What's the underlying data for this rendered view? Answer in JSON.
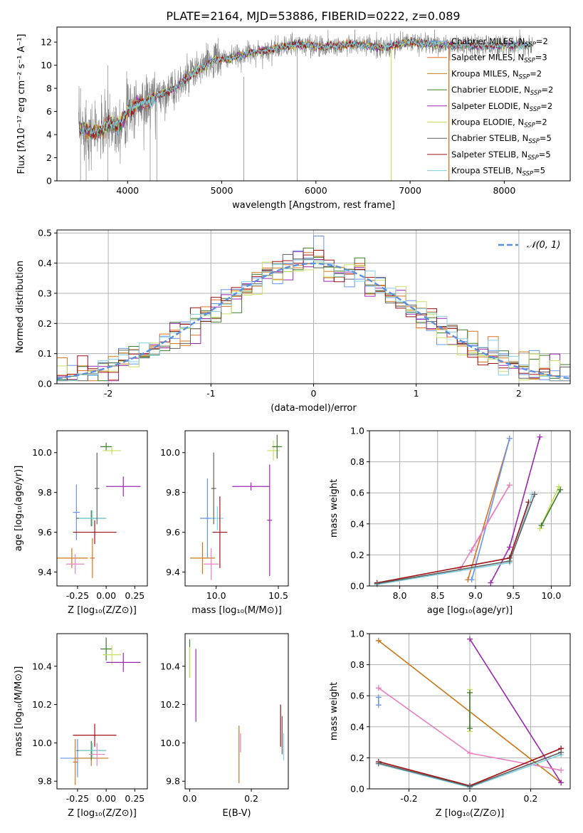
{
  "figure_title": "PLATE=2164, MJD=53886, FIBERID=0222, z=0.089",
  "colors": {
    "series": [
      "#6495ed",
      "#e07020",
      "#c87818",
      "#3c7a2c",
      "#9b27b0",
      "#c8e060",
      "#606060",
      "#a01010",
      "#80d0e0"
    ],
    "model_grey": "#808080",
    "normal_curve": "#5a8fe0",
    "pink": "#e880c0",
    "grid": "#b0b0b0"
  },
  "legend_ssp": [
    {
      "label": "Chabrier MILES, N",
      "sub": "SSP",
      "suffix": "=2"
    },
    {
      "label": "Salpeter MILES, N",
      "sub": "SSP",
      "suffix": "=3"
    },
    {
      "label": "Kroupa MILES, N",
      "sub": "SSP",
      "suffix": "=2"
    },
    {
      "label": "Chabrier ELODIE, N",
      "sub": "SSP",
      "suffix": "=2"
    },
    {
      "label": "Salpeter ELODIE, N",
      "sub": "SSP",
      "suffix": "=2"
    },
    {
      "label": "Kroupa ELODIE, N",
      "sub": "SSP",
      "suffix": "=2"
    },
    {
      "label": "Chabrier STELIB, N",
      "sub": "SSP",
      "suffix": "=5"
    },
    {
      "label": "Salpeter STELIB, N",
      "sub": "SSP",
      "suffix": "=5"
    },
    {
      "label": "Kroupa STELIB, N",
      "sub": "SSP",
      "suffix": "=5"
    }
  ],
  "chart_data": [
    {
      "id": "spectrum",
      "type": "line",
      "xlabel": "wavelength [Angstrom, rest frame]",
      "ylabel": "Flux [fλ10⁻¹⁷ erg cm⁻² s⁻¹ A⁻¹]",
      "xlim": [
        3250,
        8700
      ],
      "ylim": [
        0,
        13.3
      ],
      "xticks": [
        4000,
        5000,
        6000,
        7000,
        8000
      ],
      "yticks": [
        0,
        2,
        4,
        6,
        8,
        10,
        12
      ],
      "legend": "right",
      "data_anchor_x": [
        3500,
        3550,
        3600,
        3700,
        3800,
        3900,
        4000,
        4100,
        4200,
        4300,
        4500,
        4700,
        4900,
        5100,
        5300,
        5500,
        5800,
        6100,
        6400,
        6700,
        7000,
        7400
      ],
      "data_anchor_y": [
        4.5,
        4.6,
        4.2,
        4.2,
        5.0,
        4.8,
        6.0,
        6.6,
        6.7,
        7.3,
        8.0,
        9.3,
        10.4,
        10.6,
        11.1,
        11.3,
        11.8,
        11.6,
        11.8,
        11.5,
        12.0,
        11.7
      ]
    },
    {
      "id": "residuals",
      "type": "bar",
      "xlabel": "(data-model)/error",
      "ylabel": "Normed distribution",
      "xlim": [
        -2.5,
        2.5
      ],
      "ylim": [
        0,
        0.51
      ],
      "xticks": [
        -2,
        -1,
        0,
        1,
        2
      ],
      "yticks": [
        0.0,
        0.1,
        0.2,
        0.3,
        0.4,
        0.5
      ],
      "legend_label": "𝒩(0, 1)",
      "bin_width": 0.1,
      "extra_peak": {
        "x": 0.05,
        "y": 0.49
      }
    },
    {
      "id": "age_vs_Z",
      "type": "scatter",
      "xlabel": "Z [log₁₀(Z/Z⊙)]",
      "ylabel": "age  [log₁₀(age/yr)]",
      "xlim": [
        -0.43,
        0.36
      ],
      "ylim": [
        9.33,
        10.11
      ],
      "xticks": [
        -0.25,
        0.0,
        0.25
      ],
      "yticks": [
        9.4,
        9.6,
        9.8,
        10.0
      ],
      "points": [
        {
          "x": -0.3,
          "y": 9.47,
          "xe": 0.14,
          "ye": 0.05,
          "c": "#c87818"
        },
        {
          "x": -0.27,
          "y": 9.44,
          "xe": 0.08,
          "ye": 0.05,
          "c": "#e880c0"
        },
        {
          "x": -0.26,
          "y": 9.7,
          "xe": 0.03,
          "ye": 0.14,
          "c": "#6495ed"
        },
        {
          "x": -0.13,
          "y": 9.67,
          "xe": 0.13,
          "ye": 0.04,
          "c": "#3c7a2c"
        },
        {
          "x": -0.12,
          "y": 9.67,
          "xe": 0.12,
          "ye": 0.04,
          "c": "#80d0e0"
        },
        {
          "x": -0.1,
          "y": 9.6,
          "xe": 0.19,
          "ye": 0.06,
          "c": "#a01010"
        },
        {
          "x": -0.08,
          "y": 9.82,
          "xe": 0.02,
          "ye": 0.18,
          "c": "#606060"
        },
        {
          "x": -0.12,
          "y": 9.47,
          "xe": 0.02,
          "ye": 0.1,
          "c": "#e07020"
        },
        {
          "x": 0.0,
          "y": 10.03,
          "xe": 0.05,
          "ye": 0.02,
          "c": "#3c7a2c"
        },
        {
          "x": 0.05,
          "y": 10.01,
          "xe": 0.08,
          "ye": 0.02,
          "c": "#c8e060"
        },
        {
          "x": 0.15,
          "y": 9.83,
          "xe": 0.15,
          "ye": 0.05,
          "c": "#9b27b0"
        }
      ]
    },
    {
      "id": "age_vs_mass",
      "type": "scatter",
      "xlabel": "mass [log₁₀(M/M⊙)]",
      "ylabel": "",
      "xlim": [
        9.75,
        10.58
      ],
      "ylim": [
        9.33,
        10.11
      ],
      "xticks": [
        10.0,
        10.5
      ],
      "yticks": [
        9.4,
        9.6,
        9.8,
        10.0
      ],
      "points": [
        {
          "x": 9.93,
          "y": 9.67,
          "xe": 0.06,
          "ye": 0.2,
          "c": "#6495ed"
        },
        {
          "x": 9.89,
          "y": 9.47,
          "xe": 0.1,
          "ye": 0.08,
          "c": "#c87818"
        },
        {
          "x": 9.96,
          "y": 9.44,
          "xe": 0.06,
          "ye": 0.08,
          "c": "#e880c0"
        },
        {
          "x": 10.01,
          "y": 9.67,
          "xe": 0.05,
          "ye": 0.06,
          "c": "#80d0e0"
        },
        {
          "x": 10.03,
          "y": 9.6,
          "xe": 0.06,
          "ye": 0.18,
          "c": "#a01010"
        },
        {
          "x": 9.98,
          "y": 9.82,
          "xe": 0.02,
          "ye": 0.18,
          "c": "#606060"
        },
        {
          "x": 10.28,
          "y": 9.83,
          "xe": 0.15,
          "ye": 0.02,
          "c": "#9b27b0"
        },
        {
          "x": 10.43,
          "y": 9.66,
          "xe": 0.02,
          "ye": 0.28,
          "c": "#9b27b0"
        },
        {
          "x": 10.46,
          "y": 10.01,
          "xe": 0.05,
          "ye": 0.05,
          "c": "#c8e060"
        },
        {
          "x": 10.49,
          "y": 10.03,
          "xe": 0.04,
          "ye": 0.06,
          "c": "#3c7a2c"
        }
      ]
    },
    {
      "id": "massweight_vs_age",
      "type": "line",
      "xlabel": "age  [log₁₀(age/yr)]",
      "ylabel": "mass weight",
      "xlim": [
        7.6,
        10.25
      ],
      "ylim": [
        0,
        1.0
      ],
      "xticks": [
        8.0,
        8.5,
        9.0,
        9.5,
        10.0
      ],
      "yticks": [
        0.0,
        0.2,
        0.4,
        0.6,
        0.8,
        1.0
      ],
      "series": [
        {
          "c": "#e07020",
          "x": [
            8.9,
            9.45
          ],
          "y": [
            0.04,
            0.95
          ]
        },
        {
          "c": "#6495ed",
          "x": [
            8.95,
            9.45
          ],
          "y": [
            0.04,
            0.95
          ]
        },
        {
          "c": "#e880c0",
          "x": [
            8.8,
            9.45,
            8.95
          ],
          "y": [
            0.11,
            0.65,
            0.23
          ]
        },
        {
          "c": "#9b27b0",
          "x": [
            9.2,
            9.45,
            9.85
          ],
          "y": [
            0.02,
            0.25,
            0.96
          ]
        },
        {
          "c": "#a01010",
          "x": [
            7.7,
            9.45,
            9.7
          ],
          "y": [
            0.02,
            0.18,
            0.54
          ]
        },
        {
          "c": "#80d0e0",
          "x": [
            7.7,
            9.45,
            9.75
          ],
          "y": [
            0.01,
            0.15,
            0.59
          ]
        },
        {
          "c": "#606060",
          "x": [
            7.7,
            9.45,
            9.78
          ],
          "y": [
            0.015,
            0.16,
            0.59
          ]
        },
        {
          "c": "#c8e060",
          "x": [
            9.85,
            10.1
          ],
          "y": [
            0.37,
            0.64
          ]
        },
        {
          "c": "#3c7a2c",
          "x": [
            9.87,
            10.12
          ],
          "y": [
            0.39,
            0.62
          ]
        }
      ]
    },
    {
      "id": "mass_vs_Z",
      "type": "scatter",
      "xlabel": "Z [log₁₀(Z/Z⊙)]",
      "ylabel": "mass [log₁₀(M/M⊙)]",
      "xlim": [
        -0.43,
        0.36
      ],
      "ylim": [
        9.76,
        10.57
      ],
      "xticks": [
        -0.25,
        0.0,
        0.25
      ],
      "yticks": [
        9.8,
        10.0,
        10.2,
        10.4
      ],
      "points": [
        {
          "x": -0.25,
          "y": 9.92,
          "xe": 0.15,
          "ye": 0.1,
          "c": "#6495ed"
        },
        {
          "x": -0.13,
          "y": 9.92,
          "xe": 0.15,
          "ye": 0.04,
          "c": "#c87818"
        },
        {
          "x": -0.13,
          "y": 9.96,
          "xe": 0.13,
          "ye": 0.05,
          "c": "#3c7a2c"
        },
        {
          "x": -0.12,
          "y": 9.96,
          "xe": 0.12,
          "ye": 0.04,
          "c": "#80d0e0"
        },
        {
          "x": -0.1,
          "y": 10.04,
          "xe": 0.19,
          "ye": 0.06,
          "c": "#a01010"
        },
        {
          "x": -0.27,
          "y": 9.9,
          "xe": 0.02,
          "ye": 0.12,
          "c": "#e07020"
        },
        {
          "x": -0.08,
          "y": 9.94,
          "xe": 0.07,
          "ye": 0.06,
          "c": "#e880c0"
        },
        {
          "x": 0.0,
          "y": 10.49,
          "xe": 0.05,
          "ye": 0.06,
          "c": "#3c7a2c"
        },
        {
          "x": 0.05,
          "y": 10.46,
          "xe": 0.08,
          "ye": 0.05,
          "c": "#c8e060"
        },
        {
          "x": 0.15,
          "y": 10.42,
          "xe": 0.15,
          "ye": 0.05,
          "c": "#9b27b0"
        }
      ]
    },
    {
      "id": "mass_vs_EBV",
      "type": "scatter",
      "xlabel": "E(B-V)",
      "ylabel": "",
      "xlim": [
        -0.015,
        0.32
      ],
      "ylim": [
        9.76,
        10.57
      ],
      "xticks": [
        0.0,
        0.2
      ],
      "yticks": [
        9.8,
        10.0,
        10.2,
        10.4
      ],
      "points": [
        {
          "x": 0.0,
          "y": 10.44,
          "xe": 0,
          "ye": 0.1,
          "c": "#3c7a2c"
        },
        {
          "x": 0.0,
          "y": 10.42,
          "xe": 0,
          "ye": 0.08,
          "c": "#c8e060"
        },
        {
          "x": 0.02,
          "y": 10.3,
          "xe": 0,
          "ye": 0.19,
          "c": "#9b27b0"
        },
        {
          "x": 0.16,
          "y": 9.94,
          "xe": 0,
          "ye": 0.15,
          "c": "#e07020"
        },
        {
          "x": 0.165,
          "y": 10.0,
          "xe": 0,
          "ye": 0.05,
          "c": "#e880c0"
        },
        {
          "x": 0.295,
          "y": 10.09,
          "xe": 0,
          "ye": 0.11,
          "c": "#a01010"
        },
        {
          "x": 0.3,
          "y": 10.04,
          "xe": 0,
          "ye": 0.1,
          "c": "#606060"
        },
        {
          "x": 0.305,
          "y": 9.98,
          "xe": 0,
          "ye": 0.07,
          "c": "#80d0e0"
        }
      ]
    },
    {
      "id": "massweight_vs_Z",
      "type": "line",
      "xlabel": "Z [log₁₀(Z/Z⊙)]",
      "ylabel": "mass weight",
      "xlim": [
        -0.33,
        0.33
      ],
      "ylim": [
        0,
        1.0
      ],
      "xticks": [
        -0.2,
        0.0,
        0.2
      ],
      "yticks": [
        0.0,
        0.2,
        0.4,
        0.6,
        0.8,
        1.0
      ],
      "series": [
        {
          "c": "#c87818",
          "x": [
            -0.3,
            0.3
          ],
          "y": [
            0.955,
            0.04
          ]
        },
        {
          "c": "#9b27b0",
          "x": [
            0.0,
            0.3
          ],
          "y": [
            0.965,
            0.04
          ]
        },
        {
          "c": "#e880c0",
          "x": [
            -0.3,
            0.0,
            0.3
          ],
          "y": [
            0.65,
            0.23,
            0.12
          ]
        },
        {
          "c": "#a01010",
          "x": [
            -0.3,
            0.0,
            0.3
          ],
          "y": [
            0.175,
            0.02,
            0.26
          ]
        },
        {
          "c": "#80d0e0",
          "x": [
            -0.3,
            0.0,
            0.3
          ],
          "y": [
            0.16,
            0.01,
            0.22
          ]
        },
        {
          "c": "#606060",
          "x": [
            -0.3,
            0.0,
            0.3
          ],
          "y": [
            0.165,
            0.015,
            0.235
          ]
        },
        {
          "c": "#6495ed",
          "x": [
            -0.3,
            -0.3
          ],
          "y": [
            0.59,
            0.54
          ]
        },
        {
          "c": "#c8e060",
          "x": [
            0.0,
            0.0
          ],
          "y": [
            0.37,
            0.64
          ]
        },
        {
          "c": "#3c7a2c",
          "x": [
            0.0,
            0.0
          ],
          "y": [
            0.39,
            0.62
          ]
        }
      ]
    }
  ]
}
